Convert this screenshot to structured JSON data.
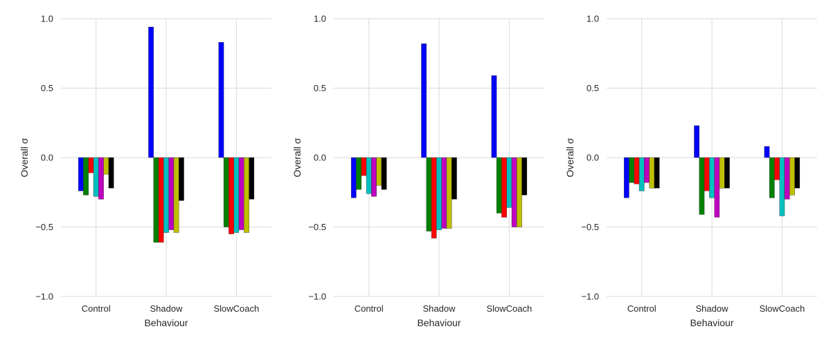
{
  "colors": {
    "background": "#ffffff",
    "grid": "#d9d9d9",
    "text": "#262626",
    "series": [
      "#0000ff",
      "#008000",
      "#ff0000",
      "#00bfbf",
      "#bf00bf",
      "#bfbf00",
      "#000000"
    ]
  },
  "chart_data": [
    {
      "type": "bar",
      "title": "",
      "xlabel": "Behaviour",
      "ylabel": "Overall σ",
      "ylim": [
        -1.0,
        1.0
      ],
      "yticks": [
        "1.0",
        "0.5",
        "0.0",
        "−0.5",
        "−1.0"
      ],
      "ytick_values": [
        1.0,
        0.5,
        0.0,
        -0.5,
        -1.0
      ],
      "grid": true,
      "categories": [
        "Control",
        "Shadow",
        "SlowCoach"
      ],
      "values": [
        [
          -0.24,
          -0.27,
          -0.11,
          -0.28,
          -0.3,
          -0.12,
          -0.22
        ],
        [
          0.94,
          -0.61,
          -0.61,
          -0.54,
          -0.52,
          -0.54,
          -0.31
        ],
        [
          0.83,
          -0.5,
          -0.55,
          -0.54,
          -0.52,
          -0.54,
          -0.3
        ]
      ]
    },
    {
      "type": "bar",
      "title": "",
      "xlabel": "Behaviour",
      "ylabel": "Overall σ",
      "ylim": [
        -1.0,
        1.0
      ],
      "yticks": [
        "1.0",
        "0.5",
        "0.0",
        "−0.5",
        "−1.0"
      ],
      "ytick_values": [
        1.0,
        0.5,
        0.0,
        -0.5,
        -1.0
      ],
      "grid": true,
      "categories": [
        "Control",
        "Shadow",
        "SlowCoach"
      ],
      "values": [
        [
          -0.29,
          -0.23,
          -0.13,
          -0.26,
          -0.28,
          -0.2,
          -0.23
        ],
        [
          0.82,
          -0.53,
          -0.58,
          -0.52,
          -0.51,
          -0.51,
          -0.3
        ],
        [
          0.59,
          -0.4,
          -0.43,
          -0.36,
          -0.5,
          -0.5,
          -0.27
        ]
      ]
    },
    {
      "type": "bar",
      "title": "",
      "xlabel": "Behaviour",
      "ylabel": "Overall σ",
      "ylim": [
        -1.0,
        1.0
      ],
      "yticks": [
        "1.0",
        "0.5",
        "0.0",
        "−0.5",
        "−1.0"
      ],
      "ytick_values": [
        1.0,
        0.5,
        0.0,
        -0.5,
        -1.0
      ],
      "grid": true,
      "categories": [
        "Control",
        "Shadow",
        "SlowCoach"
      ],
      "values": [
        [
          -0.29,
          -0.18,
          -0.19,
          -0.24,
          -0.18,
          -0.22,
          -0.22
        ],
        [
          0.23,
          -0.41,
          -0.24,
          -0.29,
          -0.43,
          -0.22,
          -0.22
        ],
        [
          0.08,
          -0.29,
          -0.16,
          -0.42,
          -0.3,
          -0.27,
          -0.22
        ]
      ]
    }
  ]
}
